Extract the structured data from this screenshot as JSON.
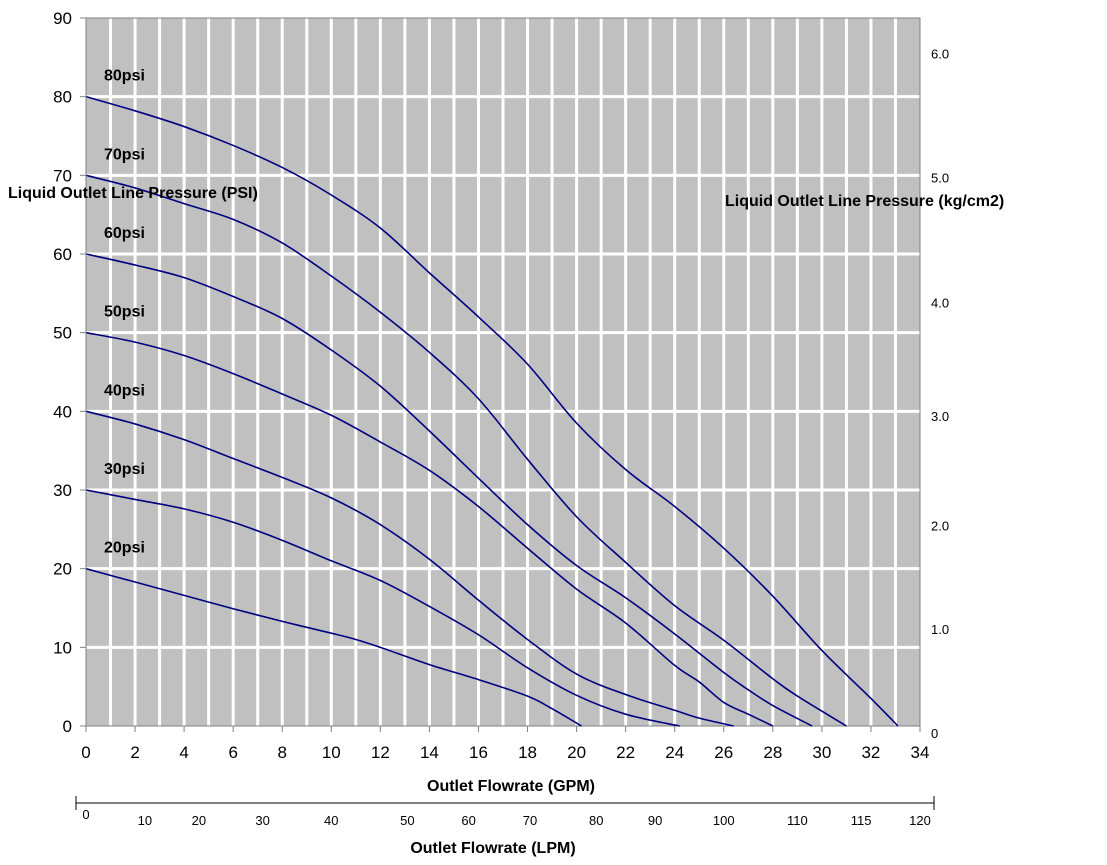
{
  "chart_data": {
    "type": "line",
    "xlabel": "Outlet Flowrate (GPM)",
    "ylabel": "Liquid Outlet Line Pressure (PSI)",
    "y2label": "Liquid Outlet Line Pressure (kg/cm2)",
    "x2label": "Outlet Flowrate (LPM)",
    "xlim": [
      0,
      34
    ],
    "ylim": [
      0,
      90
    ],
    "x_ticks": [
      0,
      2,
      4,
      6,
      8,
      10,
      12,
      14,
      16,
      18,
      20,
      22,
      24,
      26,
      28,
      30,
      32,
      34
    ],
    "y_ticks": [
      0,
      10,
      20,
      30,
      40,
      50,
      60,
      70,
      80,
      90
    ],
    "y2_ticks": [
      {
        "label": "0",
        "value_psi": 0
      },
      {
        "label": "1.0",
        "value_psi": 13.2
      },
      {
        "label": "2.0",
        "value_psi": 26.4
      },
      {
        "label": "3.0",
        "value_psi": 40.3
      },
      {
        "label": "4.0",
        "value_psi": 54.7
      },
      {
        "label": "5.0",
        "value_psi": 70.6
      },
      {
        "label": "6.0",
        "value_psi": 86.4
      }
    ],
    "x2_ticks": [
      {
        "label": "0",
        "value_gpm": 0
      },
      {
        "label": "10",
        "value_gpm": 2.4
      },
      {
        "label": "20",
        "value_gpm": 4.6
      },
      {
        "label": "30",
        "value_gpm": 7.2
      },
      {
        "label": "40",
        "value_gpm": 10.0
      },
      {
        "label": "50",
        "value_gpm": 13.1
      },
      {
        "label": "60",
        "value_gpm": 15.6
      },
      {
        "label": "70",
        "value_gpm": 18.1
      },
      {
        "label": "80",
        "value_gpm": 20.8
      },
      {
        "label": "90",
        "value_gpm": 23.2
      },
      {
        "label": "100",
        "value_gpm": 26.0
      },
      {
        "label": "110",
        "value_gpm": 29.0
      },
      {
        "label": "115",
        "value_gpm": 31.6
      },
      {
        "label": "120",
        "value_gpm": 34.0
      }
    ],
    "grid": true,
    "series": [
      {
        "name": "20psi",
        "x": [
          0,
          2,
          4,
          6,
          8,
          10,
          11,
          12,
          14,
          16,
          18,
          19,
          20.2
        ],
        "y": [
          20,
          18.3,
          16.6,
          14.9,
          13.3,
          11.8,
          11.0,
          10.0,
          7.8,
          5.9,
          3.8,
          2.2,
          0
        ]
      },
      {
        "name": "30psi",
        "x": [
          0,
          2,
          4,
          6,
          8,
          10,
          12,
          14,
          16,
          18,
          20,
          22,
          24.2
        ],
        "y": [
          30,
          28.8,
          27.6,
          25.9,
          23.6,
          21.0,
          18.5,
          15.2,
          11.6,
          7.4,
          3.9,
          1.5,
          0
        ]
      },
      {
        "name": "40psi",
        "x": [
          0,
          2,
          4,
          6,
          8,
          10,
          12,
          14,
          16,
          18,
          20,
          22,
          24,
          25,
          26.4
        ],
        "y": [
          40,
          38.4,
          36.4,
          34.0,
          31.6,
          29.0,
          25.6,
          21.2,
          16.0,
          11.0,
          6.6,
          4.0,
          2.0,
          1.0,
          0
        ]
      },
      {
        "name": "50psi",
        "x": [
          0,
          2,
          4,
          6,
          8,
          10,
          12,
          14,
          16,
          18,
          20,
          22,
          24,
          25,
          26,
          27,
          28
        ],
        "y": [
          50,
          48.8,
          47.1,
          44.8,
          42.2,
          39.5,
          36.1,
          32.5,
          27.9,
          22.6,
          17.4,
          13.1,
          7.7,
          5.6,
          3.0,
          1.5,
          0
        ]
      },
      {
        "name": "60psi",
        "x": [
          0,
          2,
          4,
          6,
          8,
          10,
          12,
          14,
          16,
          18,
          20,
          22,
          24,
          26,
          27,
          28,
          29.6
        ],
        "y": [
          60,
          58.6,
          57.0,
          54.6,
          51.8,
          47.8,
          43.2,
          37.5,
          31.5,
          25.6,
          20.4,
          16.3,
          11.7,
          6.8,
          4.6,
          2.6,
          0
        ]
      },
      {
        "name": "70psi",
        "x": [
          0,
          2,
          4,
          6,
          8,
          10,
          12,
          14,
          16,
          18,
          20,
          22,
          24,
          26,
          28,
          29,
          31
        ],
        "y": [
          70,
          68.4,
          66.4,
          64.4,
          61.4,
          57.2,
          52.6,
          47.5,
          41.6,
          33.9,
          26.6,
          20.8,
          15.3,
          10.9,
          6.0,
          3.8,
          0
        ]
      },
      {
        "name": "80psi",
        "x": [
          0,
          2,
          4,
          6,
          8,
          10,
          12,
          14,
          16,
          18,
          20,
          22,
          24,
          26,
          28,
          30,
          32,
          33.1
        ],
        "y": [
          80,
          78.2,
          76.2,
          73.8,
          71.0,
          67.5,
          63.3,
          57.6,
          52.0,
          46.0,
          38.5,
          32.6,
          27.9,
          22.6,
          16.5,
          9.6,
          3.5,
          0
        ]
      }
    ],
    "series_label_style": "bold text at left end of each curve",
    "colors": {
      "plot_bg": "#c0c0c0",
      "grid": "#ffffff",
      "curve": "#000080",
      "axis": "#808080"
    }
  }
}
